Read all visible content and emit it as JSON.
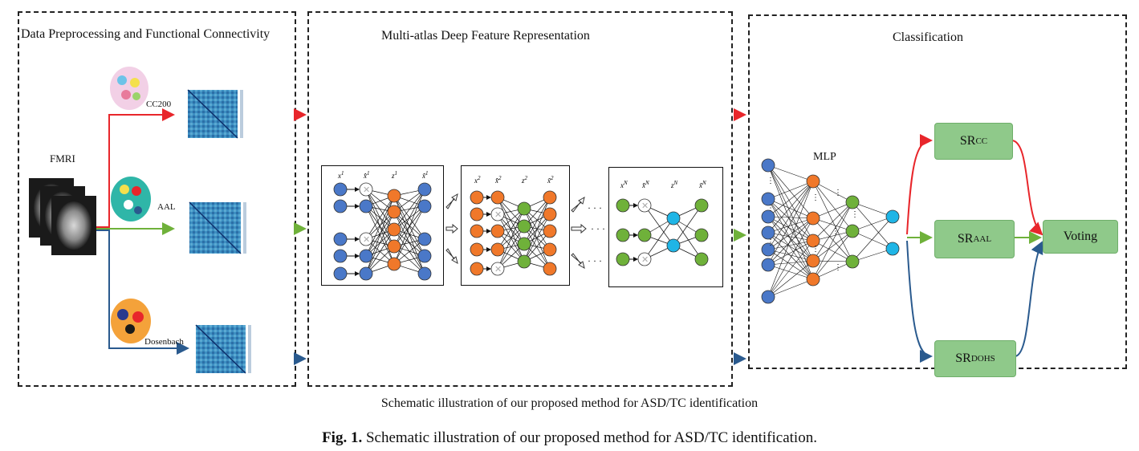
{
  "panels": {
    "preprocessing": {
      "title": "Data Preprocessing and Functional Connectivity"
    },
    "representation": {
      "title": "Multi-atlas Deep Feature Representation"
    },
    "classification": {
      "title": "Classification"
    }
  },
  "input_label": "FMRI",
  "atlases": [
    {
      "name": "CC200",
      "color": "#e8262b"
    },
    {
      "name": "AAL",
      "color": "#6fb13a"
    },
    {
      "name": "Dosenbach",
      "color": "#2a5a8e"
    }
  ],
  "autoencoders": [
    {
      "x": "x",
      "xhat": "x̂",
      "z": "z",
      "xtilde": "x̃",
      "sup": "1",
      "color": "#4a78c8"
    },
    {
      "x": "x",
      "xhat": "x̂",
      "z": "z",
      "xtilde": "x̃",
      "sup": "2",
      "color": "#f0782a"
    },
    {
      "x": "x",
      "xhat": "x̂",
      "z": "z",
      "xtilde": "x̃",
      "sup": "N",
      "color": "#6fb13a"
    }
  ],
  "mlp_label": "MLP",
  "classifiers": [
    {
      "base": "SR",
      "sub": "CC"
    },
    {
      "base": "SR",
      "sub": "AAL"
    },
    {
      "base": "SR",
      "sub": "DOHS"
    }
  ],
  "voting_label": "Voting",
  "colors": {
    "red": "#e8262b",
    "green": "#6fb13a",
    "blue": "#2a5a8e",
    "orange": "#f0782a",
    "cyan": "#1fb5e6",
    "nn_blue": "#4a78c8",
    "box_green": "#8fc98a"
  },
  "caption_inner": "Schematic illustration of our proposed method for ASD/TC identification",
  "caption": {
    "label": "Fig. 1.",
    "text": "Schematic illustration of our proposed method for ASD/TC identification."
  }
}
